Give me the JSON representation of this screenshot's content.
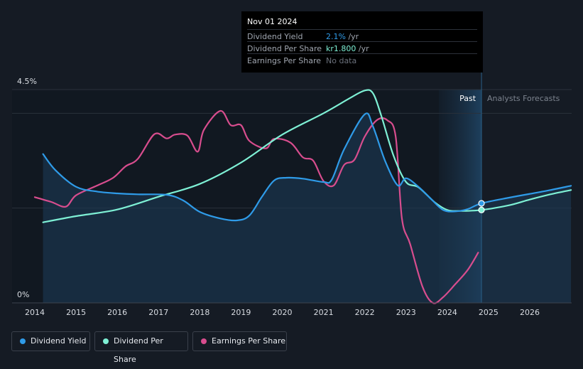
{
  "tooltip": {
    "date": "Nov 01 2024",
    "rows": [
      {
        "label": "Dividend Yield",
        "value": "2.1%",
        "unit": " /yr"
      },
      {
        "label": "Dividend Per Share",
        "value": "kr1.800",
        "unit": " /yr"
      },
      {
        "label": "Earnings Per Share",
        "value": "No data",
        "unit": ""
      }
    ]
  },
  "chart_data": {
    "type": "line",
    "title": "",
    "xlabel": "",
    "ylabel": "",
    "y_ticks": [
      "4.5%",
      "0%"
    ],
    "x_ticks": [
      "2014",
      "2015",
      "2016",
      "2017",
      "2018",
      "2019",
      "2020",
      "2021",
      "2022",
      "2023",
      "2024",
      "2025",
      "2026"
    ],
    "xlim": [
      2014,
      2027
    ],
    "ylim": [
      0,
      4.5
    ],
    "past_label": "Past",
    "forecast_label": "Analysts Forecasts",
    "current_x": 2024.83,
    "colors": {
      "dividend_yield": "#2f9be8",
      "dividend_per_share": "#7ef0d5",
      "earnings_per_share": "#d84d8e"
    },
    "series": [
      {
        "name": "Dividend Yield",
        "key": "dividend_yield",
        "x": [
          2014.2,
          2014.5,
          2015.0,
          2015.5,
          2016.0,
          2016.5,
          2017.2,
          2017.6,
          2018.0,
          2018.5,
          2018.9,
          2019.2,
          2019.5,
          2019.8,
          2020.1,
          2020.5,
          2021.0,
          2021.2,
          2021.5,
          2022.0,
          2022.2,
          2022.5,
          2022.8,
          2023.0,
          2023.3,
          2023.6,
          2023.9,
          2024.2,
          2024.5,
          2024.83,
          2025.5,
          2026.0,
          2026.5,
          2027.0
        ],
        "values": [
          3.14,
          2.8,
          2.45,
          2.35,
          2.31,
          2.29,
          2.28,
          2.16,
          1.92,
          1.78,
          1.74,
          1.84,
          2.23,
          2.58,
          2.64,
          2.62,
          2.55,
          2.6,
          3.24,
          3.98,
          3.72,
          2.98,
          2.48,
          2.63,
          2.45,
          2.2,
          1.96,
          1.93,
          1.98,
          2.1,
          2.22,
          2.3,
          2.38,
          2.47
        ]
      },
      {
        "name": "Dividend Per Share",
        "key": "dividend_per_share",
        "x": [
          2014.2,
          2015.0,
          2016.0,
          2017.0,
          2018.0,
          2019.0,
          2020.0,
          2021.0,
          2021.6,
          2022.0,
          2022.2,
          2022.4,
          2022.7,
          2023.0,
          2023.3,
          2023.7,
          2024.0,
          2024.3,
          2024.83,
          2025.5,
          2026.0,
          2026.5,
          2027.0
        ],
        "values": [
          1.7,
          1.83,
          1.97,
          2.24,
          2.51,
          2.96,
          3.55,
          4.0,
          4.3,
          4.48,
          4.42,
          3.95,
          3.1,
          2.55,
          2.44,
          2.12,
          1.96,
          1.94,
          1.96,
          2.06,
          2.18,
          2.29,
          2.38
        ]
      },
      {
        "name": "Earnings Per Share",
        "key": "earnings_per_share",
        "x": [
          2014.0,
          2014.4,
          2014.75,
          2015.0,
          2015.5,
          2015.9,
          2016.2,
          2016.5,
          2016.9,
          2017.2,
          2017.4,
          2017.7,
          2017.95,
          2018.1,
          2018.5,
          2018.75,
          2019.0,
          2019.2,
          2019.6,
          2019.8,
          2020.2,
          2020.5,
          2020.75,
          2021.0,
          2021.25,
          2021.5,
          2021.75,
          2022.0,
          2022.3,
          2022.55,
          2022.75,
          2022.9,
          2023.1,
          2023.4,
          2023.65,
          2023.9,
          2024.2,
          2024.5,
          2024.75
        ],
        "values": [
          2.23,
          2.13,
          2.03,
          2.27,
          2.47,
          2.64,
          2.88,
          3.04,
          3.56,
          3.47,
          3.55,
          3.53,
          3.19,
          3.65,
          4.05,
          3.75,
          3.75,
          3.42,
          3.26,
          3.46,
          3.38,
          3.07,
          3.0,
          2.57,
          2.48,
          2.91,
          3.02,
          3.51,
          3.86,
          3.85,
          3.51,
          1.79,
          1.24,
          0.34,
          0.0,
          0.12,
          0.4,
          0.7,
          1.06
        ]
      }
    ]
  },
  "legend": {
    "items": [
      {
        "label": "Dividend Yield"
      },
      {
        "label": "Dividend Per Share"
      },
      {
        "label": "Earnings Per Share"
      }
    ]
  }
}
